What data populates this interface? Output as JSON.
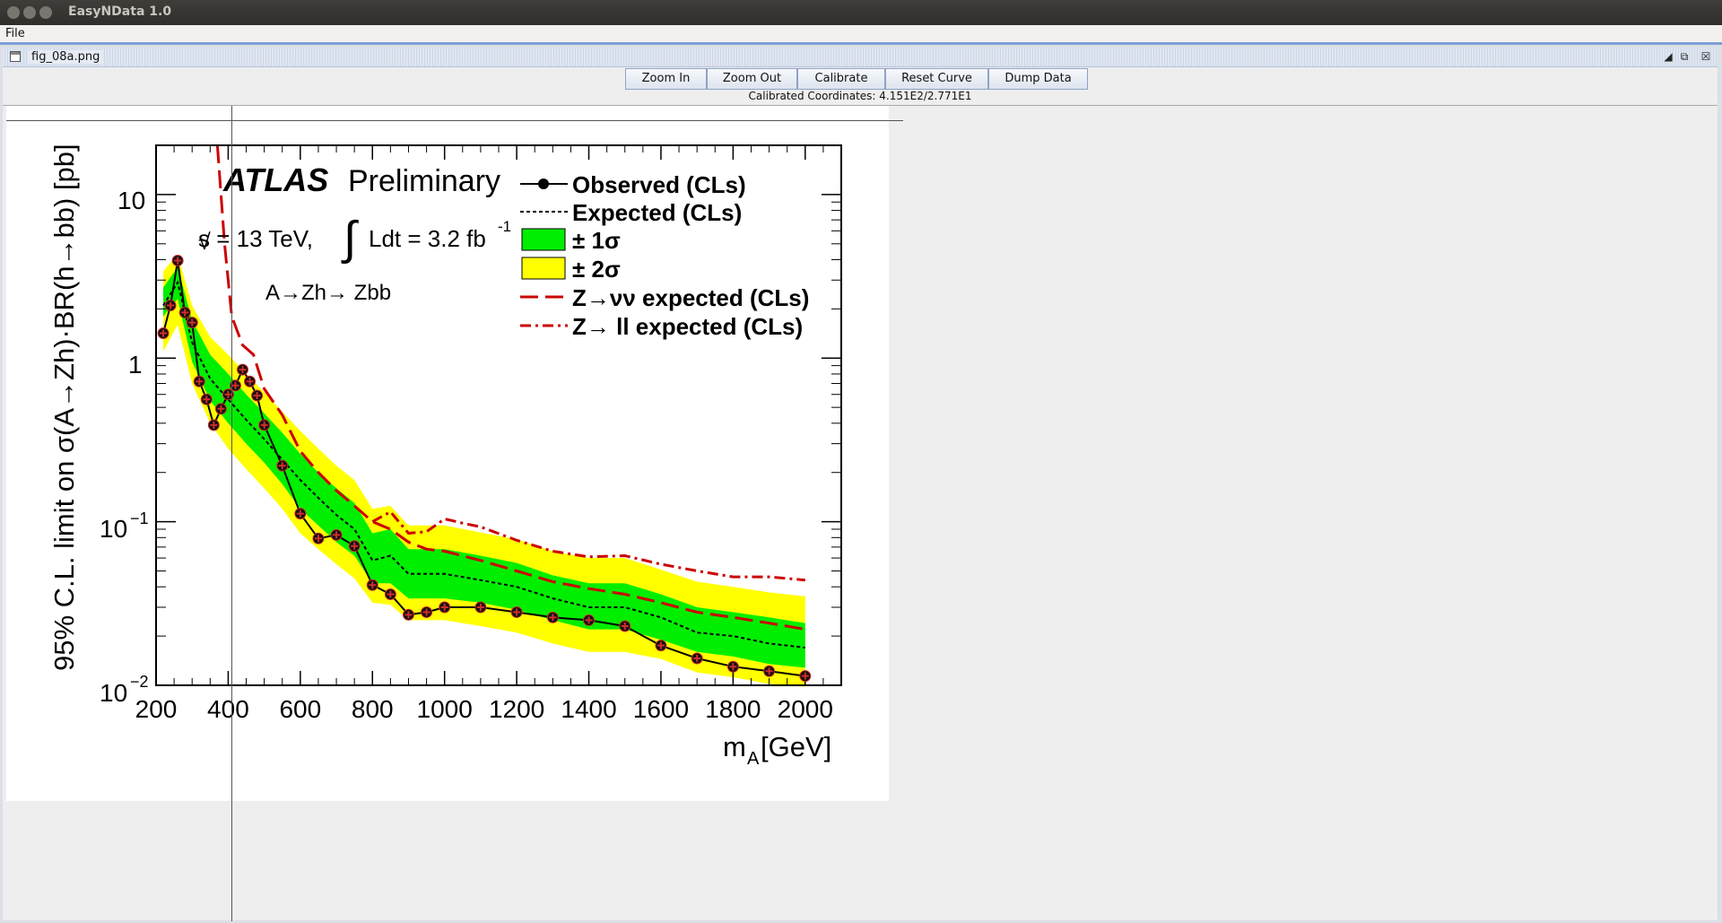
{
  "window": {
    "title": "EasyNData 1.0"
  },
  "menu": {
    "file": "File"
  },
  "internal_frame": {
    "title": "fig_08a.png"
  },
  "toolbar": {
    "zoom_in": "Zoom In",
    "zoom_out": "Zoom Out",
    "calibrate": "Calibrate",
    "reset_curve": "Reset Curve",
    "dump_data": "Dump Data"
  },
  "status": {
    "calibrated": "Calibrated Coordinates: 4.151E2/2.771E1"
  },
  "chart_data": {
    "type": "line",
    "x_label_main": "m",
    "x_label_sub": "A",
    "x_label_unit": " [GeV]",
    "ylabel": "95% C.L. limit on σ(A→Zh)·BR(h→bb) [pb]",
    "xlim": [
      200,
      2100
    ],
    "ylim": [
      0.01,
      20
    ],
    "yscale": "log",
    "x_ticks": [
      200,
      400,
      600,
      800,
      1000,
      1200,
      1400,
      1600,
      1800,
      2000
    ],
    "x_tick_labels": [
      "200",
      "400",
      "600",
      "800",
      "1000",
      "1200",
      "1400",
      "1600",
      "1800",
      "2000"
    ],
    "y_tick_labels": {
      "ten": "10",
      "exp": "−1",
      "exp2": "−2",
      "one": "1",
      "ten_b": "10"
    },
    "annotations": {
      "atlas": "ATLAS",
      "prelim": "Preliminary",
      "sqrt_s": "s = 13 TeV,",
      "lumi": "Ldt = 3.2 fb",
      "lumi_exp": "-1",
      "process": "A→Zh→ Zbb"
    },
    "legend": {
      "observed": "Observed (CLs)",
      "expected": "Expected (CLs)",
      "one_sigma": "± 1σ",
      "two_sigma": "± 2σ",
      "znunu": "Z→νν expected (CLs)",
      "zll": "Z→ ll expected (CLs)"
    },
    "colors": {
      "one_sigma": "#00ee00",
      "two_sigma": "#ffff00",
      "observed_marker": "#d42b2b",
      "red_line": "#cc0000"
    },
    "series": [
      {
        "name": "Observed (CLs)",
        "x": [
          220,
          240,
          260,
          280,
          300,
          320,
          340,
          360,
          380,
          400,
          420,
          440,
          460,
          480,
          500,
          550,
          600,
          650,
          700,
          750,
          800,
          850,
          900,
          950,
          1000,
          1100,
          1200,
          1300,
          1400,
          1500,
          1600,
          1700,
          1800,
          1900,
          2000
        ],
        "values": [
          1.42,
          2.1,
          3.95,
          1.9,
          1.65,
          0.72,
          0.56,
          0.39,
          0.49,
          0.6,
          0.68,
          0.85,
          0.72,
          0.59,
          0.39,
          0.22,
          0.112,
          0.079,
          0.083,
          0.071,
          0.041,
          0.036,
          0.027,
          0.028,
          0.03,
          0.03,
          0.028,
          0.026,
          0.025,
          0.023,
          0.0175,
          0.0146,
          0.013,
          0.0122,
          0.0114
        ]
      },
      {
        "name": "Expected (CLs)",
        "x": [
          220,
          260,
          300,
          350,
          400,
          450,
          500,
          550,
          600,
          650,
          700,
          750,
          800,
          850,
          900,
          1000,
          1100,
          1200,
          1300,
          1400,
          1500,
          1600,
          1700,
          1800,
          1900,
          2000
        ],
        "values": [
          2.1,
          2.9,
          1.25,
          0.75,
          0.56,
          0.42,
          0.32,
          0.24,
          0.18,
          0.14,
          0.11,
          0.09,
          0.058,
          0.062,
          0.048,
          0.048,
          0.044,
          0.04,
          0.034,
          0.03,
          0.03,
          0.026,
          0.021,
          0.02,
          0.018,
          0.017
        ]
      },
      {
        "name": "Z→νν expected (CLs)",
        "x": [
          370,
          390,
          410,
          440,
          470,
          500,
          550,
          600,
          650,
          700,
          750,
          800,
          850,
          900,
          950,
          1000,
          1100,
          1200,
          1300,
          1400,
          1500,
          1600,
          1700,
          1800,
          1900,
          2000
        ],
        "values": [
          20,
          5,
          1.8,
          1.2,
          1.05,
          0.65,
          0.45,
          0.27,
          0.2,
          0.155,
          0.125,
          0.1,
          0.09,
          0.075,
          0.068,
          0.066,
          0.058,
          0.05,
          0.043,
          0.039,
          0.036,
          0.032,
          0.028,
          0.026,
          0.024,
          0.022
        ]
      },
      {
        "name": "Z→ ll expected (CLs)",
        "x": [
          800,
          850,
          900,
          950,
          1000,
          1050,
          1100,
          1200,
          1300,
          1400,
          1500,
          1600,
          1700,
          1800,
          1900,
          2000
        ],
        "values": [
          0.1,
          0.115,
          0.085,
          0.087,
          0.104,
          0.098,
          0.093,
          0.077,
          0.066,
          0.061,
          0.062,
          0.055,
          0.05,
          0.046,
          0.046,
          0.044
        ]
      }
    ],
    "bands": {
      "one_sigma_low": [
        1.8,
        2.3,
        0.95,
        0.55,
        0.4,
        0.3,
        0.23,
        0.17,
        0.12,
        0.095,
        0.075,
        0.062,
        0.042,
        0.042,
        0.034,
        0.034,
        0.032,
        0.029,
        0.025,
        0.022,
        0.022,
        0.019,
        0.016,
        0.015,
        0.0135,
        0.0128
      ],
      "one_sigma_high": [
        2.7,
        3.6,
        1.7,
        1.05,
        0.8,
        0.6,
        0.46,
        0.35,
        0.26,
        0.2,
        0.16,
        0.13,
        0.085,
        0.09,
        0.068,
        0.068,
        0.062,
        0.056,
        0.047,
        0.042,
        0.042,
        0.036,
        0.03,
        0.028,
        0.026,
        0.024
      ],
      "two_sigma_low": [
        1.1,
        1.6,
        0.7,
        0.4,
        0.28,
        0.21,
        0.16,
        0.12,
        0.085,
        0.068,
        0.055,
        0.045,
        0.032,
        0.031,
        0.025,
        0.025,
        0.023,
        0.021,
        0.018,
        0.016,
        0.016,
        0.0145,
        0.012,
        0.0112,
        0.0102,
        0.0098
      ],
      "two_sigma_high": [
        3.4,
        4.3,
        2.1,
        1.35,
        1.05,
        0.8,
        0.62,
        0.47,
        0.36,
        0.28,
        0.22,
        0.18,
        0.12,
        0.125,
        0.095,
        0.095,
        0.086,
        0.078,
        0.066,
        0.06,
        0.06,
        0.051,
        0.043,
        0.04,
        0.037,
        0.035
      ]
    }
  }
}
